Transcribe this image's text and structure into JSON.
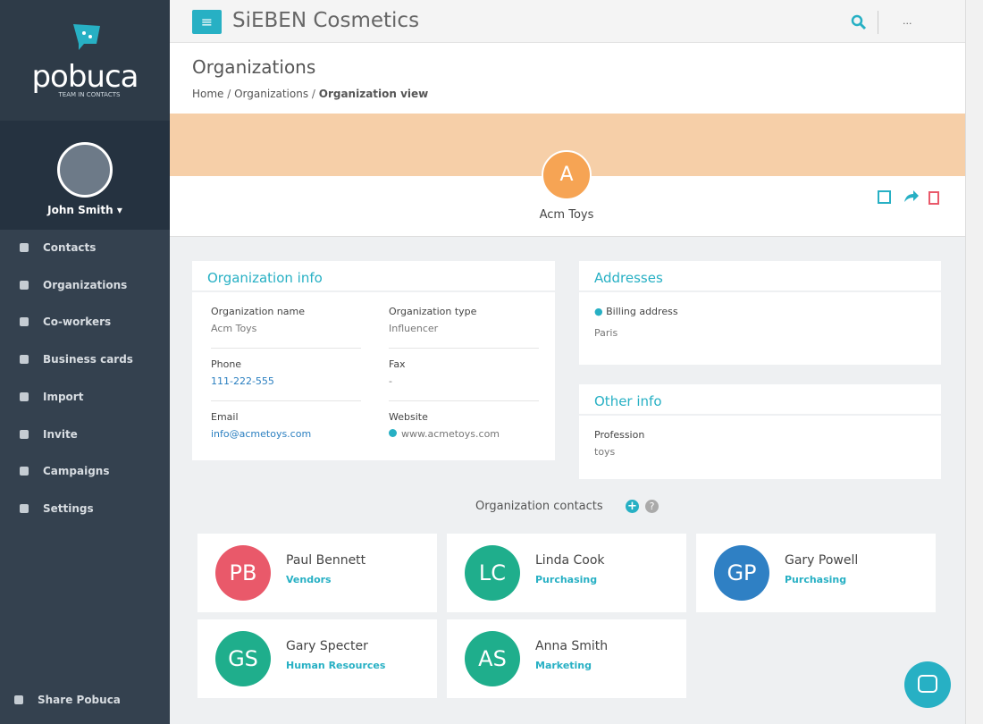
{
  "sidebar": {
    "logo": "pobuca",
    "logo_tagline": "TEAM IN CONTACTS",
    "user": "John Smith",
    "menu": [
      "Contacts",
      "Organizations",
      "Co-workers",
      "Business cards",
      "Import",
      "Invite",
      "Campaigns",
      "Settings"
    ],
    "share": "Share Pobuca"
  },
  "header": {
    "title": "SiEBEN Cosmetics",
    "more": "..."
  },
  "page": {
    "title": "Organizations",
    "breadcrumb": [
      "Home",
      "Organizations",
      "Organization view"
    ]
  },
  "profile": {
    "initial": "A",
    "name": "Acm Toys"
  },
  "org_info": {
    "title": "Organization info",
    "fields": [
      {
        "label": "Organization name",
        "value": "Acm Toys"
      },
      {
        "label": "Organization type",
        "value": "Influencer"
      },
      {
        "label": "Phone",
        "value": "111-222-555"
      },
      {
        "label": "Fax",
        "value": "-"
      },
      {
        "label": "Email",
        "value": "info@acmetoys.com"
      },
      {
        "label": "Website",
        "value": "www.acmetoys.com"
      }
    ]
  },
  "addresses": {
    "title": "Addresses",
    "label": "Billing address",
    "value": "Paris"
  },
  "other_info": {
    "title": "Other info",
    "label": "Profession",
    "value": "toys"
  },
  "contacts": {
    "title": "Organization contacts",
    "items": [
      {
        "initials": "PB",
        "name": "Paul Bennett",
        "group": "Vendors",
        "color": "#e9596a"
      },
      {
        "initials": "LC",
        "name": "Linda Cook",
        "group": "Purchasing",
        "color": "#1fae8c"
      },
      {
        "initials": "GP",
        "name": "Gary Powell",
        "group": "Purchasing",
        "color": "#2f80c4"
      },
      {
        "initials": "GS",
        "name": "Gary Specter",
        "group": "Human Resources",
        "color": "#1fae8c"
      },
      {
        "initials": "AS",
        "name": "Anna Smith",
        "group": "Marketing",
        "color": "#1fae8c"
      }
    ]
  }
}
